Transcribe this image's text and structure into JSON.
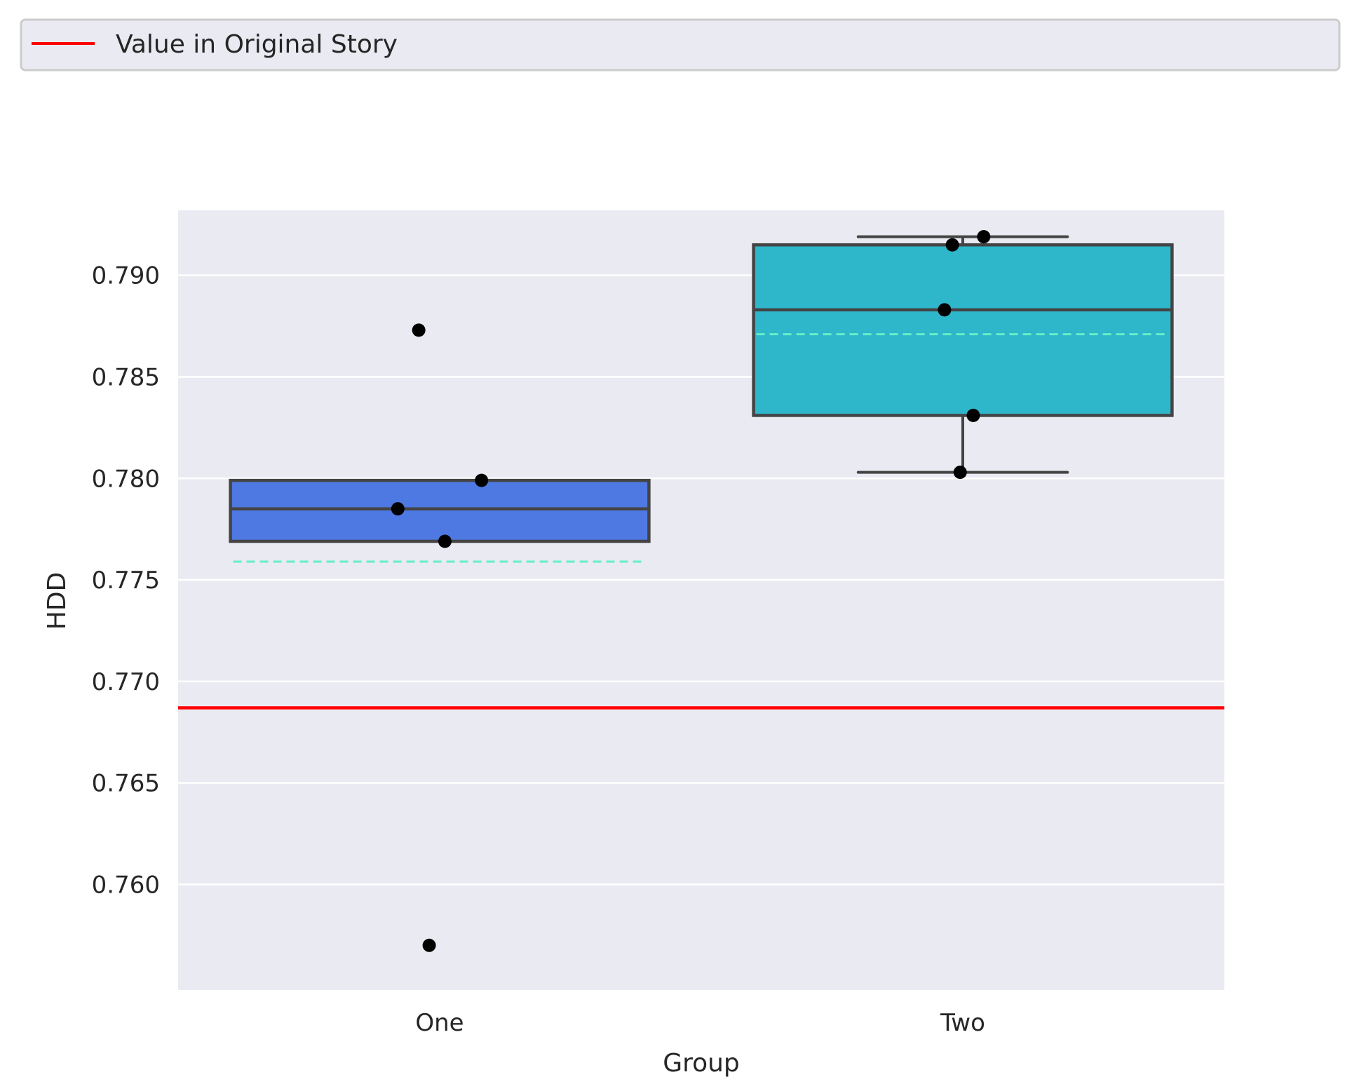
{
  "chart_data": {
    "type": "box",
    "xlabel": "Group",
    "ylabel": "HDD",
    "ylim": [
      0.7548,
      0.7932
    ],
    "yticks": [
      0.76,
      0.765,
      0.77,
      0.775,
      0.78,
      0.785,
      0.79
    ],
    "ytick_labels": [
      "0.760",
      "0.765",
      "0.770",
      "0.775",
      "0.780",
      "0.785",
      "0.790"
    ],
    "grid": true,
    "legend": {
      "placement": "top, spanning full width",
      "entries": [
        {
          "label": "Value in Original Story",
          "color": "#ff0000",
          "style": "line"
        }
      ]
    },
    "reference_line": {
      "name": "Value in Original Story",
      "y": 0.7687,
      "color": "#ff0000"
    },
    "groups": [
      {
        "category": "One",
        "color": "#4f79e2",
        "whisker_low": 0.7769,
        "q1": 0.7769,
        "median": 0.7785,
        "q3": 0.7799,
        "whisker_high": 0.7799,
        "mean": 0.7759,
        "points": [
          0.7873,
          0.7799,
          0.7785,
          0.7769,
          0.757
        ],
        "jitter": [
          -0.04,
          0.08,
          -0.08,
          0.01,
          -0.02
        ]
      },
      {
        "category": "Two",
        "color": "#2eb6cb",
        "whisker_low": 0.7803,
        "q1": 0.7831,
        "median": 0.7883,
        "q3": 0.7915,
        "whisker_high": 0.7919,
        "mean": 0.7871,
        "points": [
          0.7919,
          0.7915,
          0.7883,
          0.7831,
          0.7803
        ],
        "jitter": [
          0.04,
          -0.02,
          -0.035,
          0.02,
          -0.005
        ]
      }
    ],
    "mean_line_color": "#64f0c6",
    "box_edge_color": "#444444",
    "point_color": "#000000",
    "background_color": "#eaeaf2",
    "grid_color": "#ffffff"
  }
}
